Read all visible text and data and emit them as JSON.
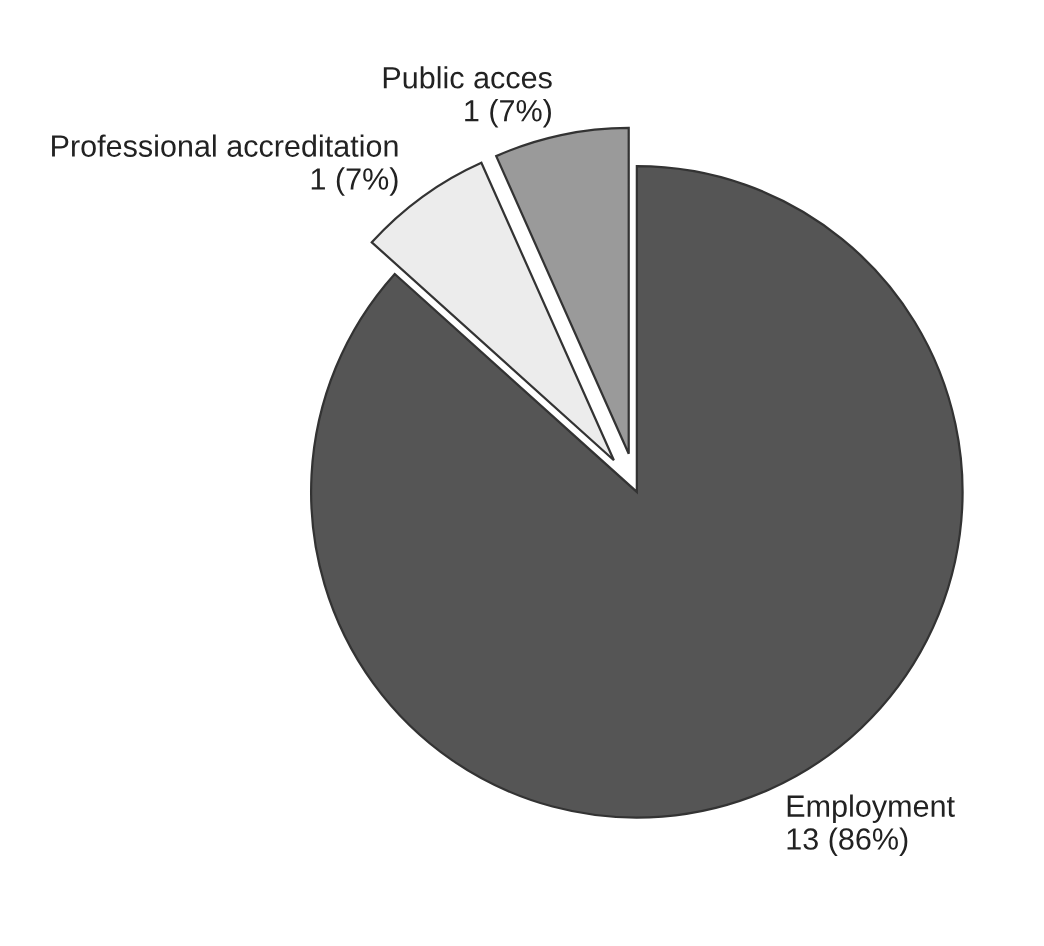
{
  "chart_data": {
    "type": "pie",
    "categories": [
      "Employment",
      "Professional accreditation",
      "Public acces"
    ],
    "values": [
      13,
      1,
      1
    ],
    "value_labels": [
      "13 (86%)",
      "1 (7%)",
      "1 (7%)"
    ],
    "colors": [
      "#555555",
      "#ececec",
      "#9a9a9a"
    ]
  }
}
